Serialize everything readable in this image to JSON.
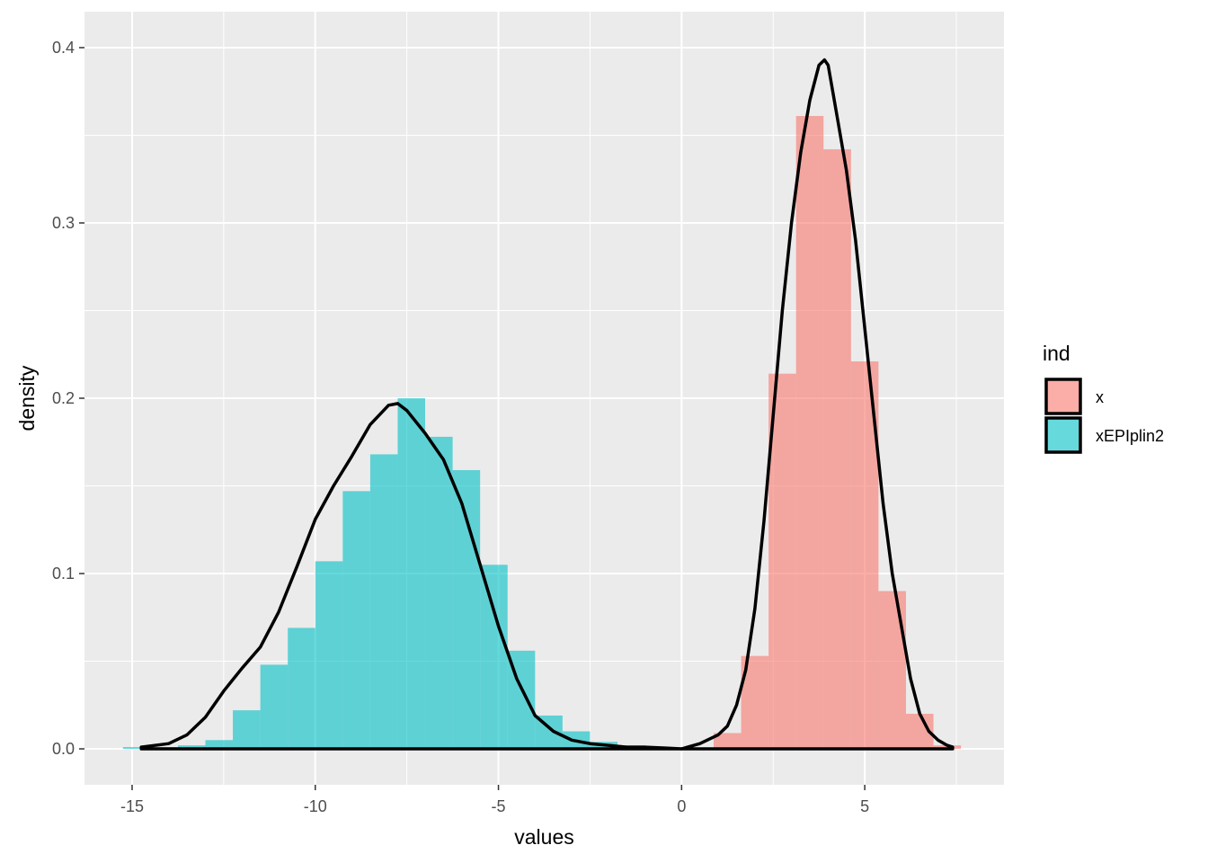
{
  "chart_data": {
    "type": "histogram",
    "xlabel": "values",
    "ylabel": "density",
    "xlim": [
      -16.3,
      8.8
    ],
    "ylim": [
      -0.0205,
      0.4205
    ],
    "x_ticks": [
      -15,
      -10,
      -5,
      0,
      5
    ],
    "x_tick_labels": [
      "-15",
      "-10",
      "-5",
      "0",
      "5"
    ],
    "y_ticks": [
      0.0,
      0.1,
      0.2,
      0.3,
      0.4
    ],
    "y_tick_labels": [
      "0.0",
      "0.1",
      "0.2",
      "0.3",
      "0.4"
    ],
    "grid": true,
    "legend": {
      "title": "ind",
      "position": "right",
      "entries": [
        {
          "label": "x",
          "color": "#F8766D"
        },
        {
          "label": "xEPIplin2",
          "color": "#00BFC4"
        }
      ]
    },
    "series": [
      {
        "name": "xEPIplin2",
        "color": "#00BFC4",
        "bin_width": 0.75,
        "bins": [
          {
            "x0": -15.25,
            "density": 0.001
          },
          {
            "x0": -14.5,
            "density": 0.001
          },
          {
            "x0": -13.75,
            "density": 0.002
          },
          {
            "x0": -13.0,
            "density": 0.005
          },
          {
            "x0": -12.25,
            "density": 0.022
          },
          {
            "x0": -11.5,
            "density": 0.048
          },
          {
            "x0": -10.75,
            "density": 0.069
          },
          {
            "x0": -10.0,
            "density": 0.107
          },
          {
            "x0": -9.25,
            "density": 0.147
          },
          {
            "x0": -8.5,
            "density": 0.168
          },
          {
            "x0": -7.75,
            "density": 0.2
          },
          {
            "x0": -7.0,
            "density": 0.178
          },
          {
            "x0": -6.25,
            "density": 0.159
          },
          {
            "x0": -5.5,
            "density": 0.105
          },
          {
            "x0": -4.75,
            "density": 0.056
          },
          {
            "x0": -4.0,
            "density": 0.019
          },
          {
            "x0": -3.25,
            "density": 0.01
          },
          {
            "x0": -2.5,
            "density": 0.004
          },
          {
            "x0": -1.75,
            "density": 0.002
          }
        ],
        "density_curve": {
          "x": [
            -14.75,
            -14.0,
            -13.5,
            -13.0,
            -12.5,
            -12.0,
            -11.5,
            -11.0,
            -10.5,
            -10.0,
            -9.5,
            -9.0,
            -8.5,
            -8.0,
            -7.75,
            -7.5,
            -7.0,
            -6.5,
            -6.0,
            -5.5,
            -5.0,
            -4.5,
            -4.0,
            -3.5,
            -3.0,
            -2.5,
            -2.0,
            -1.5,
            -1.0,
            -0.5,
            0.0
          ],
          "y": [
            0.001,
            0.003,
            0.008,
            0.018,
            0.033,
            0.046,
            0.058,
            0.078,
            0.104,
            0.131,
            0.15,
            0.167,
            0.185,
            0.196,
            0.197,
            0.193,
            0.18,
            0.165,
            0.14,
            0.105,
            0.07,
            0.04,
            0.019,
            0.01,
            0.005,
            0.003,
            0.002,
            0.001,
            0.001,
            0.0005,
            0.0
          ]
        }
      },
      {
        "name": "x",
        "color": "#F8766D",
        "bin_width": 0.75,
        "bins": [
          {
            "x0": 0.875,
            "density": 0.009
          },
          {
            "x0": 1.625,
            "density": 0.053
          },
          {
            "x0": 2.375,
            "density": 0.214
          },
          {
            "x0": 3.125,
            "density": 0.361
          },
          {
            "x0": 3.875,
            "density": 0.342
          },
          {
            "x0": 4.625,
            "density": 0.221
          },
          {
            "x0": 5.375,
            "density": 0.09
          },
          {
            "x0": 6.125,
            "density": 0.02
          },
          {
            "x0": 6.875,
            "density": 0.002
          }
        ],
        "density_curve": {
          "x": [
            0.0,
            0.5,
            1.0,
            1.25,
            1.5,
            1.75,
            2.0,
            2.25,
            2.5,
            2.75,
            3.0,
            3.25,
            3.5,
            3.75,
            3.9,
            4.0,
            4.25,
            4.5,
            4.75,
            5.0,
            5.25,
            5.5,
            5.75,
            6.0,
            6.25,
            6.5,
            6.75,
            7.0,
            7.25,
            7.4
          ],
          "y": [
            0.0,
            0.003,
            0.008,
            0.013,
            0.025,
            0.045,
            0.08,
            0.13,
            0.19,
            0.25,
            0.3,
            0.34,
            0.37,
            0.39,
            0.393,
            0.39,
            0.36,
            0.33,
            0.29,
            0.24,
            0.19,
            0.14,
            0.1,
            0.07,
            0.04,
            0.02,
            0.01,
            0.005,
            0.002,
            0.001
          ]
        }
      }
    ]
  }
}
